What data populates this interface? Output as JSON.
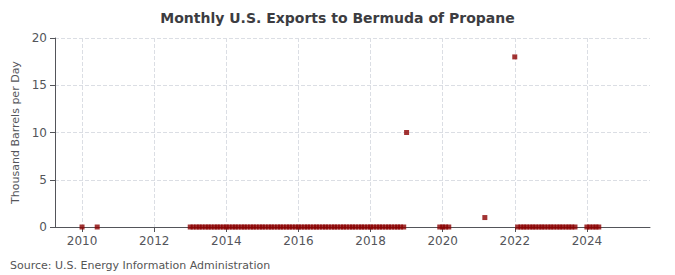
{
  "chart_data": {
    "type": "scatter",
    "title": "Monthly U.S. Exports to Bermuda of Propane",
    "ylabel": "Thousand Barrels per Day",
    "annotations": [
      "Source: U.S. Energy Information Administration"
    ],
    "color": "#8b0000",
    "marker": "square",
    "grid": true,
    "xlim": [
      2009.25,
      2025.75
    ],
    "xticks": [
      2010,
      2012,
      2014,
      2016,
      2018,
      2020,
      2022,
      2024
    ],
    "ylim": [
      0,
      20
    ],
    "yticks": [
      0,
      5,
      10,
      15,
      20
    ],
    "x": [
      2010.0,
      2010.42,
      2013.0,
      2013.08,
      2013.17,
      2013.25,
      2013.33,
      2013.42,
      2013.5,
      2013.58,
      2013.67,
      2013.75,
      2013.83,
      2013.92,
      2014.0,
      2014.08,
      2014.17,
      2014.25,
      2014.33,
      2014.42,
      2014.5,
      2014.58,
      2014.67,
      2014.75,
      2014.83,
      2014.92,
      2015.0,
      2015.08,
      2015.17,
      2015.25,
      2015.33,
      2015.42,
      2015.5,
      2015.58,
      2015.67,
      2015.75,
      2015.83,
      2015.92,
      2016.0,
      2016.08,
      2016.17,
      2016.25,
      2016.33,
      2016.42,
      2016.5,
      2016.58,
      2016.67,
      2016.75,
      2016.83,
      2016.92,
      2017.0,
      2017.08,
      2017.17,
      2017.25,
      2017.33,
      2017.42,
      2017.5,
      2017.58,
      2017.67,
      2017.75,
      2017.83,
      2017.92,
      2018.0,
      2018.08,
      2018.17,
      2018.25,
      2018.33,
      2018.42,
      2018.5,
      2018.58,
      2018.67,
      2018.75,
      2018.83,
      2018.92,
      2019.0,
      2019.92,
      2020.0,
      2020.08,
      2020.17,
      2021.17,
      2022.0,
      2022.08,
      2022.17,
      2022.25,
      2022.33,
      2022.42,
      2022.5,
      2022.58,
      2022.67,
      2022.75,
      2022.83,
      2022.92,
      2023.0,
      2023.08,
      2023.17,
      2023.25,
      2023.33,
      2023.42,
      2023.5,
      2023.58,
      2023.67,
      2024.0,
      2024.08,
      2024.17,
      2024.25,
      2024.33
    ],
    "values": [
      0.0,
      0.0,
      0.0,
      0.0,
      0.0,
      0.0,
      0.0,
      0.0,
      0.0,
      0.0,
      0.0,
      0.0,
      0.0,
      0.0,
      0.0,
      0.0,
      0.0,
      0.0,
      0.0,
      0.0,
      0.0,
      0.0,
      0.0,
      0.0,
      0.0,
      0.0,
      0.0,
      0.0,
      0.0,
      0.0,
      0.0,
      0.0,
      0.0,
      0.0,
      0.0,
      0.0,
      0.0,
      0.0,
      0.0,
      0.0,
      0.0,
      0.0,
      0.0,
      0.0,
      0.0,
      0.0,
      0.0,
      0.0,
      0.0,
      0.0,
      0.0,
      0.0,
      0.0,
      0.0,
      0.0,
      0.0,
      0.0,
      0.0,
      0.0,
      0.0,
      0.0,
      0.0,
      0.0,
      0.0,
      0.0,
      0.0,
      0.0,
      0.0,
      0.0,
      0.0,
      0.0,
      0.0,
      0.0,
      0.0,
      10.0,
      0.0,
      0.0,
      0.0,
      0.0,
      1.0,
      18.0,
      0.0,
      0.0,
      0.0,
      0.0,
      0.0,
      0.0,
      0.0,
      0.0,
      0.0,
      0.0,
      0.0,
      0.0,
      0.0,
      0.0,
      0.0,
      0.0,
      0.0,
      0.0,
      0.0,
      0.0,
      0.0,
      0.0,
      0.0,
      0.0,
      0.0
    ]
  }
}
